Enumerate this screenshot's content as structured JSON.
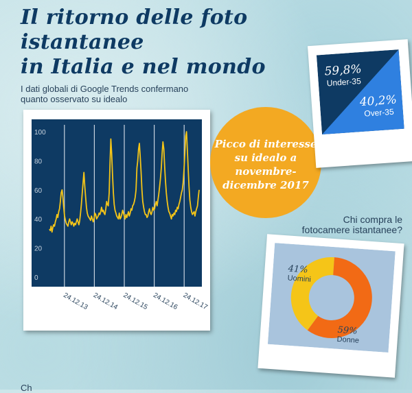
{
  "title": {
    "line1": "Il ritorno delle foto istantanee",
    "line2": "in Italia e nel mondo"
  },
  "subtitle": {
    "line1": "I dati globali di Google Trends confermano",
    "line2": "quanto osservato su idealo"
  },
  "highlight": {
    "lines": [
      "Picco di interesse",
      "su idealo a",
      "novembre-",
      "dicembre 2017"
    ],
    "color": "#f3a922"
  },
  "demographics": {
    "under": {
      "value": "59,8%",
      "label": "Under-35"
    },
    "over": {
      "value": "40,2%",
      "label": "Over-35"
    },
    "colors": {
      "under": "#0e3a63",
      "over": "#2f80e0"
    }
  },
  "buyers": {
    "question_line1": "Chi compra le",
    "question_line2": "fotocamere istantanee?"
  },
  "bottom_text": "Ch",
  "chart_data": [
    {
      "type": "line",
      "title": "",
      "xlabel": "",
      "ylabel": "",
      "ylim": [
        0,
        100
      ],
      "yticks": [
        "0",
        "20",
        "40",
        "60",
        "80",
        "100"
      ],
      "xtick_labels": [
        "24.12.13",
        "24.12.14",
        "24.12.15",
        "24.12.16",
        "24.12.17"
      ],
      "xtick_positions": [
        0.1,
        0.3,
        0.5,
        0.7,
        0.9
      ],
      "grid": false,
      "colors": {
        "background": "#0e3a63",
        "line": "#f5c518",
        "vline": "#c8d3df",
        "tick": "#c8d3df"
      },
      "series": [
        {
          "values": [
            33,
            32,
            35,
            31,
            34,
            36,
            35,
            38,
            40,
            43,
            41,
            45,
            47,
            52,
            58,
            60,
            55,
            48,
            42,
            39,
            37,
            36,
            35,
            38,
            40,
            38,
            36,
            38,
            37,
            35,
            37,
            36,
            38,
            40,
            38,
            36,
            39,
            44,
            50,
            58,
            65,
            72,
            63,
            55,
            48,
            44,
            42,
            41,
            40,
            39,
            42,
            40,
            38,
            40,
            44,
            43,
            40,
            41,
            42,
            44,
            43,
            45,
            48,
            45,
            46,
            44,
            43,
            47,
            52,
            50,
            49,
            58,
            78,
            95,
            85,
            70,
            58,
            50,
            46,
            44,
            42,
            41,
            40,
            44,
            40,
            41,
            43,
            46,
            44,
            42,
            40,
            43,
            41,
            43,
            45,
            42,
            44,
            47,
            46,
            49,
            50,
            52,
            55,
            60,
            75,
            80,
            88,
            92,
            82,
            72,
            60,
            52,
            48,
            45,
            43,
            43,
            41,
            42,
            45,
            47,
            44,
            43,
            45,
            48,
            46,
            47,
            50,
            52,
            49,
            53,
            57,
            62,
            68,
            75,
            85,
            93,
            88,
            76,
            66,
            58,
            52,
            48,
            45,
            44,
            42,
            40,
            43,
            42,
            44,
            43,
            46,
            45,
            48,
            47,
            50,
            52,
            55,
            58,
            60,
            65,
            74,
            85,
            97,
            100,
            87,
            74,
            62,
            53,
            48,
            45,
            43,
            44,
            45,
            42,
            45,
            47,
            49,
            55,
            60
          ]
        }
      ]
    },
    {
      "type": "pie",
      "title": "",
      "slices": [
        {
          "label": "Uomini",
          "value": 41,
          "display": "41%",
          "color": "#f5c518"
        },
        {
          "label": "Donne",
          "value": 59,
          "display": "59%",
          "color": "#f26a15"
        }
      ],
      "colors": {
        "background": "#a9c4dd",
        "label": "#27415a"
      }
    }
  ]
}
